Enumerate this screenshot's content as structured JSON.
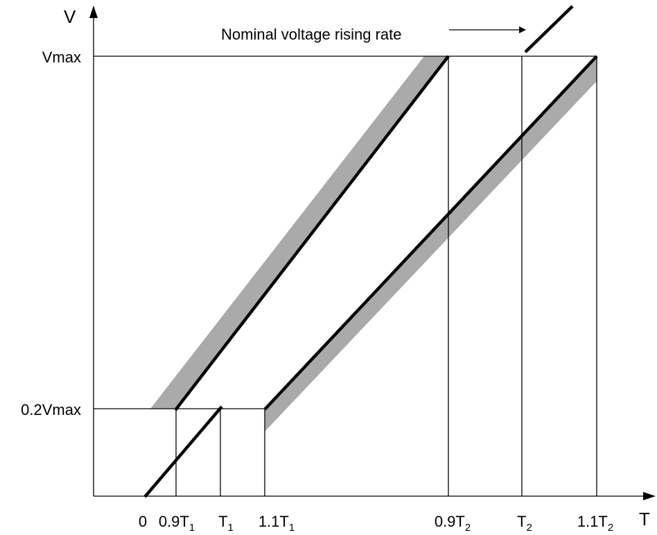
{
  "axes": {
    "y_label": "V",
    "x_label": "T",
    "y_ticks": [
      "Vmax",
      "0.2Vmax"
    ],
    "x_ticks": [
      {
        "main": "0",
        "sub": ""
      },
      {
        "main": "0.9T",
        "sub": "1"
      },
      {
        "main": "T",
        "sub": "1"
      },
      {
        "main": "1.1T",
        "sub": "1"
      },
      {
        "main": "0.9T",
        "sub": "2"
      },
      {
        "main": "T",
        "sub": "2"
      },
      {
        "main": "1.1T",
        "sub": "2"
      }
    ]
  },
  "annotation": "Nominal voltage rising rate",
  "colors": {
    "band": "#aaaaaa",
    "lines": "#000000"
  }
}
